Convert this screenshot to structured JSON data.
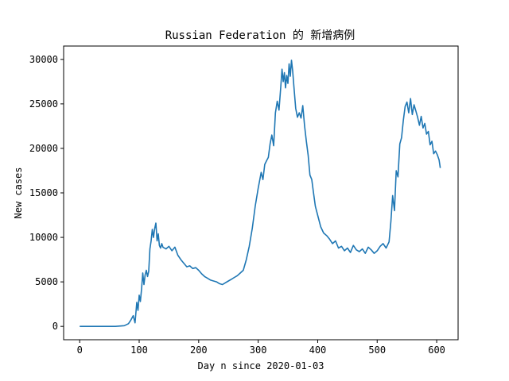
{
  "chart_data": {
    "type": "line",
    "title": "Russian Federation 的 新增病例",
    "xlabel": "Day n since 2020-01-03",
    "ylabel": "New cases",
    "xlim": [
      -27,
      636
    ],
    "ylim": [
      -1500,
      31500
    ],
    "xticks": [
      0,
      100,
      200,
      300,
      400,
      500,
      600
    ],
    "yticks": [
      0,
      5000,
      10000,
      15000,
      20000,
      25000,
      30000
    ],
    "grid": false,
    "series": [
      {
        "color": "#1f77b4",
        "x": [
          0,
          20,
          40,
          60,
          75,
          82,
          86,
          90,
          93,
          96,
          98,
          100,
          102,
          104,
          106,
          108,
          110,
          112,
          114,
          116,
          118,
          120,
          122,
          124,
          126,
          128,
          130,
          132,
          134,
          136,
          138,
          140,
          145,
          150,
          155,
          160,
          165,
          170,
          175,
          180,
          185,
          190,
          195,
          200,
          205,
          210,
          215,
          220,
          225,
          230,
          235,
          240,
          245,
          250,
          255,
          260,
          265,
          270,
          275,
          280,
          285,
          290,
          295,
          300,
          305,
          308,
          311,
          314,
          317,
          320,
          323,
          326,
          329,
          332,
          335,
          338,
          340,
          342,
          344,
          346,
          348,
          350,
          352,
          354,
          356,
          358,
          360,
          363,
          366,
          369,
          372,
          375,
          378,
          381,
          384,
          387,
          390,
          393,
          396,
          400,
          405,
          410,
          415,
          420,
          425,
          430,
          435,
          440,
          445,
          450,
          455,
          460,
          465,
          470,
          475,
          480,
          485,
          490,
          495,
          500,
          505,
          510,
          515,
          520,
          523,
          526,
          529,
          532,
          535,
          538,
          541,
          544,
          547,
          550,
          553,
          556,
          559,
          562,
          565,
          568,
          571,
          574,
          577,
          580,
          583,
          586,
          589,
          592,
          595,
          598,
          601,
          604,
          606
        ],
        "y": [
          0,
          0,
          0,
          0,
          80,
          300,
          700,
          1200,
          400,
          2700,
          1800,
          3500,
          2800,
          4200,
          6000,
          4700,
          5800,
          6300,
          5600,
          6200,
          8700,
          9600,
          10900,
          10000,
          11000,
          11600,
          9600,
          10400,
          9100,
          8800,
          9300,
          8900,
          8700,
          9000,
          8500,
          8900,
          8000,
          7500,
          7100,
          6700,
          6800,
          6500,
          6600,
          6300,
          5900,
          5600,
          5400,
          5200,
          5100,
          5000,
          4800,
          4700,
          4900,
          5100,
          5300,
          5500,
          5700,
          6000,
          6300,
          7500,
          9000,
          11000,
          13500,
          15500,
          17300,
          16500,
          18200,
          18600,
          19000,
          20500,
          21500,
          20300,
          24000,
          25300,
          24300,
          27000,
          28900,
          27500,
          28500,
          26800,
          28200,
          27300,
          29500,
          28100,
          29900,
          28700,
          27000,
          24500,
          23500,
          24000,
          23400,
          24800,
          22500,
          20800,
          19200,
          17000,
          16500,
          15000,
          13500,
          12500,
          11200,
          10500,
          10200,
          9800,
          9300,
          9600,
          8800,
          9000,
          8500,
          8800,
          8300,
          9100,
          8600,
          8400,
          8700,
          8200,
          8900,
          8600,
          8200,
          8500,
          9000,
          9300,
          8800,
          9500,
          11800,
          14700,
          13000,
          17500,
          16800,
          20500,
          21200,
          23200,
          24700,
          25200,
          24000,
          25600,
          23800,
          24900,
          24200,
          23500,
          22600,
          23600,
          22300,
          22800,
          21600,
          21900,
          20400,
          20800,
          19400,
          19700,
          19300,
          18700,
          17800
        ]
      }
    ]
  }
}
